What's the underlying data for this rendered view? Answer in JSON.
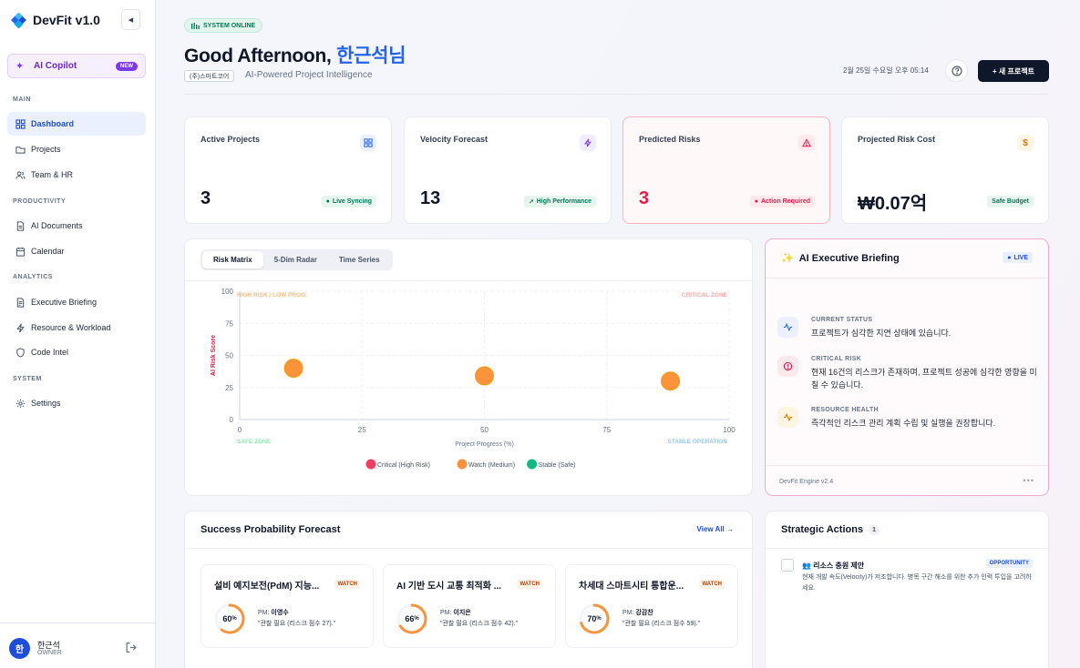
{
  "sidebar": {
    "brand": "DevFit v1.0",
    "copilot": {
      "label": "AI Copilot",
      "badge": "NEW"
    },
    "sections": {
      "main": "MAIN",
      "productivity": "PRODUCTIVITY",
      "analytics": "ANALYTICS",
      "system": "SYSTEM"
    },
    "items": [
      {
        "label": "Dashboard",
        "icon": "grid-icon"
      },
      {
        "label": "Projects",
        "icon": "folder-icon"
      },
      {
        "label": "Team & HR",
        "icon": "users-icon"
      },
      {
        "label": "AI Documents",
        "icon": "document-icon"
      },
      {
        "label": "Calendar",
        "icon": "calendar-icon"
      },
      {
        "label": "Executive Briefing",
        "icon": "briefing-icon"
      },
      {
        "label": "Resource & Workload",
        "icon": "bolt-icon"
      },
      {
        "label": "Code Intel",
        "icon": "shield-icon"
      },
      {
        "label": "Settings",
        "icon": "gear-icon"
      }
    ],
    "user": {
      "initial": "한",
      "name": "한근석",
      "role": "OWNER"
    }
  },
  "header": {
    "status": "SYSTEM ONLINE",
    "greeting": "Good Afternoon, ",
    "name": "한근석님",
    "company": "(주)스마트코어",
    "tagline": "AI-Powered Project Intelligence",
    "datetime": "2월 25일 수요일 오후 05:14",
    "new_project": "+ 새 프로젝트"
  },
  "kpis": [
    {
      "title": "Active Projects",
      "value": "3",
      "status": "Live Syncing",
      "status_color": "#047857"
    },
    {
      "title": "Velocity Forecast",
      "value": "13",
      "status": "High Performance",
      "status_color": "#047857"
    },
    {
      "title": "Predicted Risks",
      "value": "3",
      "status": "Action Required",
      "status_color": "#e11d48"
    },
    {
      "title": "Projected Risk Cost",
      "value": "₩0.07억",
      "status": "Safe Budget",
      "status_color": "#047857"
    }
  ],
  "risk_panel": {
    "tabs": [
      "Risk Matrix",
      "5-Dim Radar",
      "Time Series"
    ]
  },
  "chart_data": {
    "type": "scatter",
    "xlabel": "Project Progress (%)",
    "ylabel": "AI Risk Score",
    "xlim": [
      0,
      100
    ],
    "ylim": [
      0,
      100
    ],
    "x_ticks": [
      "0",
      "25",
      "50",
      "75",
      "100"
    ],
    "y_ticks": [
      "0",
      "25",
      "50",
      "75",
      "100"
    ],
    "annotations": {
      "top_left": "HIGH RISK / LOW PROG.",
      "top_right": "CRITICAL ZONE",
      "bottom_left": "SAFE ZONE",
      "bottom_right": "STABLE OPERATION"
    },
    "legend": [
      {
        "name": "Critical (High Risk)",
        "color": "#f43f5e"
      },
      {
        "name": "Watch (Medium)",
        "color": "#fb923c"
      },
      {
        "name": "Stable (Safe)",
        "color": "#10b981"
      }
    ],
    "points": [
      {
        "x": 11,
        "y": 40,
        "category": "Watch (Medium)"
      },
      {
        "x": 50,
        "y": 34,
        "category": "Watch (Medium)"
      },
      {
        "x": 88,
        "y": 30,
        "category": "Watch (Medium)"
      }
    ]
  },
  "briefing": {
    "title": "AI Executive Briefing",
    "badge": "LIVE",
    "items": [
      {
        "label": "CURRENT STATUS",
        "text": "프로젝트가 심각한 지연 상태에 있습니다."
      },
      {
        "label": "CRITICAL RISK",
        "text": "현재 16건의 리스크가 존재하며, 프로젝트 성공에 심각한 영향을 미칠 수 있습니다."
      },
      {
        "label": "RESOURCE HEALTH",
        "text": "즉각적인 리스크 관리 계획 수립 및 실행을 권장합니다."
      }
    ],
    "engine": "DevFit Engine v2.4"
  },
  "forecast": {
    "title": "Success Probability Forecast",
    "view_all": "View All →",
    "projects": [
      {
        "name": "설비 예지보전(PdM) 지능...",
        "status": "WATCH",
        "probability": 60,
        "pm_label": "PM:",
        "pm": "이영수",
        "quote": "\"관찰 필요 (리스크 점수 27).\""
      },
      {
        "name": "AI 기반 도시 교통 최적화 ...",
        "status": "WATCH",
        "probability": 66,
        "pm_label": "PM:",
        "pm": "이지은",
        "quote": "\"관찰 필요 (리스크 점수 42).\""
      },
      {
        "name": "차세대 스마트시티 통합운...",
        "status": "WATCH",
        "probability": 70,
        "pm_label": "PM:",
        "pm": "강감찬",
        "quote": "\"관찰 필요 (리스크 점수 59).\""
      }
    ]
  },
  "actions": {
    "title": "Strategic Actions",
    "count": "1",
    "items": [
      {
        "title": "👥 리소스 충원 제안",
        "badge": "OPPORTUNITY",
        "desc": "현재 개발 속도(Velocity)가 저조합니다. 병목 구간 해소를 위한 추가 인력 투입을 고려하세요."
      }
    ]
  }
}
